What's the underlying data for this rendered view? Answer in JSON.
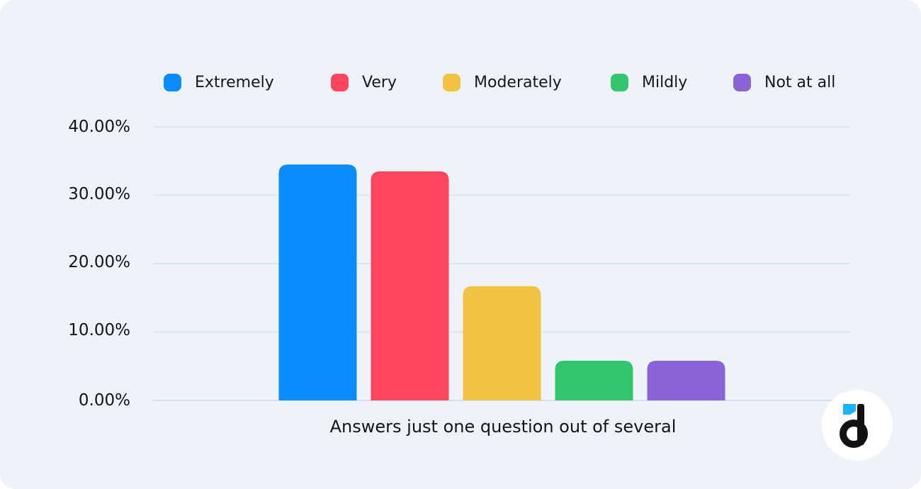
{
  "chart_data": {
    "type": "bar",
    "categories": [
      "Extremely",
      "Very",
      "Moderately",
      "Mildly",
      "Not at all"
    ],
    "values": [
      34.5,
      33.5,
      16.7,
      5.8,
      5.8
    ],
    "colors": [
      "#0a8cff",
      "#ff465e",
      "#f2c243",
      "#33c56c",
      "#8b63d8"
    ],
    "xlabel": "Answers just one question out of several",
    "ylabel": "",
    "ylim": [
      0,
      40
    ],
    "yticks": [
      "0.00%",
      "10.00%",
      "20.00%",
      "30.00%",
      "40.00%"
    ],
    "grid": true,
    "legend_position": "top"
  },
  "legend": [
    {
      "label": "Extremely",
      "color": "#0a8cff"
    },
    {
      "label": "Very",
      "color": "#ff465e"
    },
    {
      "label": "Moderately",
      "color": "#f2c243"
    },
    {
      "label": "Mildly",
      "color": "#33c56c"
    },
    {
      "label": "Not at all",
      "color": "#8b63d8"
    }
  ],
  "logo": {
    "icon": "devtodev-d-logo-icon"
  }
}
